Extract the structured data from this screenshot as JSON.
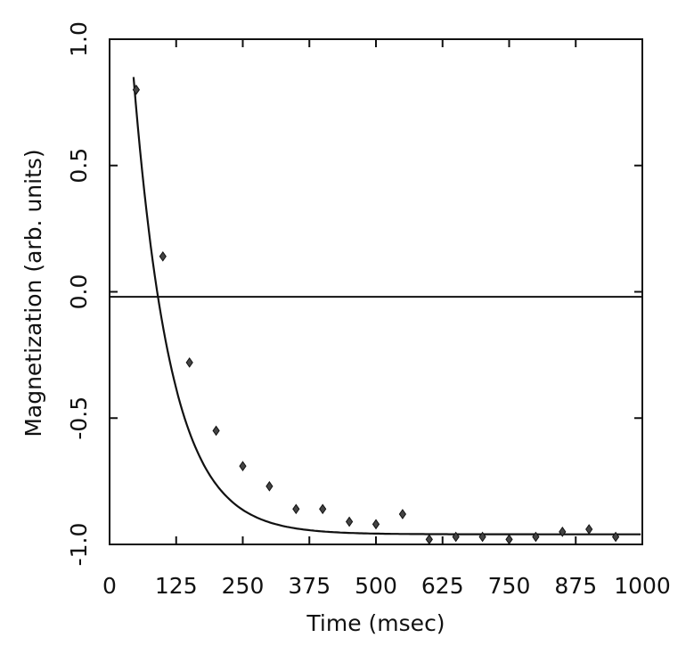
{
  "chart_data": {
    "type": "scatter",
    "title": "",
    "xlabel": "Time  (msec)",
    "ylabel": "Magnetization  (arb.  units)",
    "xlim": [
      0,
      1000
    ],
    "ylim": [
      -1.0,
      1.0
    ],
    "x_ticks": [
      "0",
      "125",
      "250",
      "375",
      "500",
      "625",
      "750",
      "875",
      "1000"
    ],
    "y_ticks": [
      "1.0",
      "0.5",
      "0.0",
      "-0.5",
      "-1.0"
    ],
    "y_tick_values": [
      1.0,
      0.5,
      0.0,
      -0.5,
      -1.0
    ],
    "x_tick_values": [
      0,
      125,
      250,
      375,
      500,
      625,
      750,
      875,
      1000
    ],
    "grid": false,
    "reference_line_y": -0.02,
    "marker": "diamond",
    "series": [
      {
        "x": [
          50,
          100,
          150,
          200,
          250,
          300,
          350,
          400,
          450,
          500,
          550,
          600,
          650,
          700,
          750,
          800,
          850,
          900,
          950
        ],
        "y": [
          0.8,
          0.14,
          -0.28,
          -0.55,
          -0.69,
          -0.77,
          -0.86,
          -0.86,
          -0.91,
          -0.92,
          -0.88,
          -0.98,
          -0.97,
          -0.97,
          -0.98,
          -0.97,
          -0.95,
          -0.94,
          -0.97
        ]
      }
    ],
    "fit_curve": {
      "type": "exponential_recovery",
      "asymptote": -0.96,
      "x0": 45,
      "y0": 0.85,
      "decay_msec": 70
    }
  }
}
